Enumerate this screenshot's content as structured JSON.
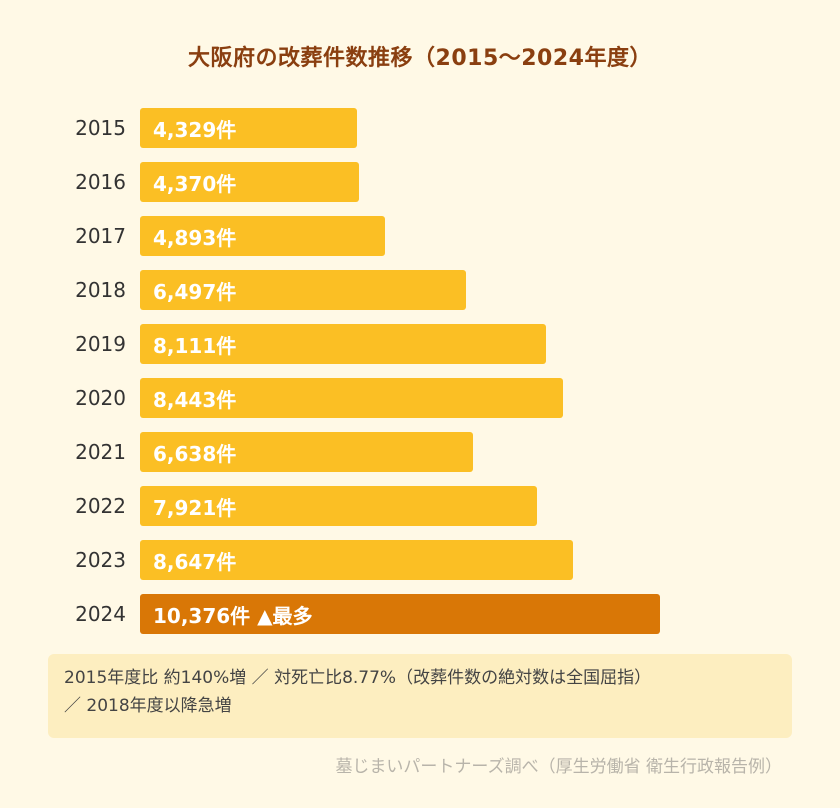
{
  "colors": {
    "bar": "#fbbf24",
    "highlight": "#d97706"
  },
  "chart_data": {
    "type": "bar",
    "orientation": "horizontal",
    "title": "大阪府の改葬件数推移（2015〜2024年度）",
    "categories": [
      "2015",
      "2016",
      "2017",
      "2018",
      "2019",
      "2020",
      "2021",
      "2022",
      "2023",
      "2024"
    ],
    "values": [
      4329,
      4370,
      4893,
      6497,
      8111,
      8443,
      6638,
      7921,
      8647,
      10376
    ],
    "labels": [
      "4,329件",
      "4,370件",
      "4,893件",
      "6,497件",
      "8,111件",
      "8,443件",
      "6,638件",
      "7,921件",
      "8,647件",
      "10,376件 ▲最多"
    ],
    "highlight_index": 9,
    "xlim": [
      0,
      12000
    ],
    "unit": "件"
  },
  "note": {
    "line1": "2015年度比 約140%増 ／ 対死亡比8.77%（改葬件数の絶対数は全国屈指）",
    "line2": "／ 2018年度以降急増"
  },
  "source": "墓じまいパートナーズ調べ（厚生労働省 衛生行政報告例）"
}
